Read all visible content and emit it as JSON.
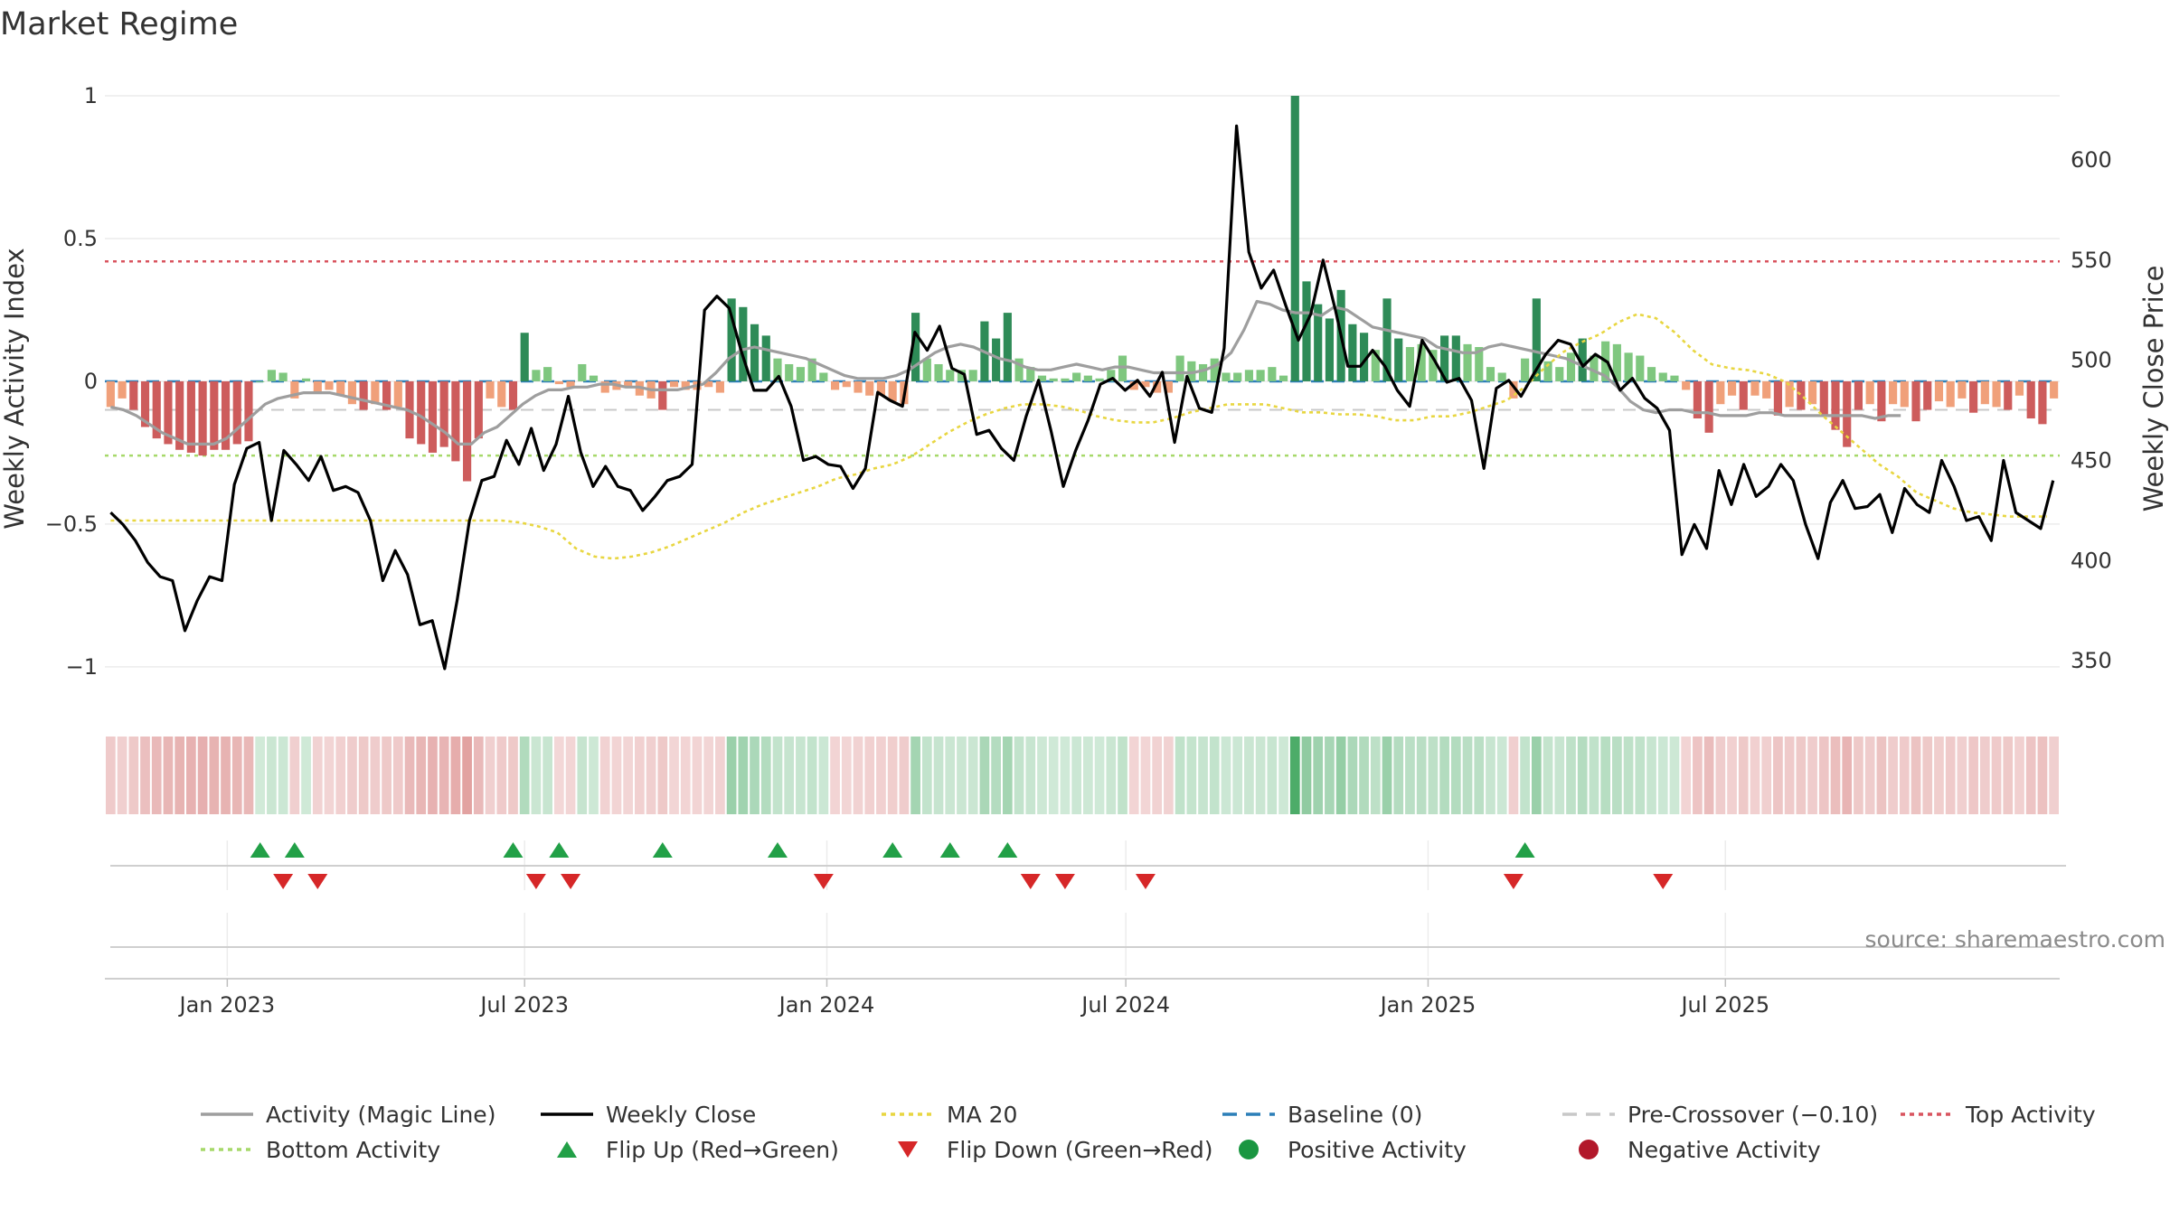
{
  "chart_data": {
    "type": "bar",
    "title": "Market Regime",
    "ylabel": "Weekly Activity Index",
    "y2label": "Weekly Close Price",
    "source": "source: sharemaestro.com",
    "ylim": [
      -1.07,
      1.0
    ],
    "y2lim": [
      337,
      632
    ],
    "y_ticks": [
      {
        "value": 1,
        "label": "1"
      },
      {
        "value": 0.5,
        "label": "0.5"
      },
      {
        "value": 0,
        "label": "0"
      },
      {
        "value": -0.5,
        "label": "−0.5"
      },
      {
        "value": -1,
        "label": "−1"
      }
    ],
    "y2_ticks": [
      {
        "value": 600,
        "label": "600"
      },
      {
        "value": 550,
        "label": "550"
      },
      {
        "value": 500,
        "label": "500"
      },
      {
        "value": 450,
        "label": "450"
      },
      {
        "value": 400,
        "label": "400"
      },
      {
        "value": 350,
        "label": "350"
      }
    ],
    "x_ticks": [
      {
        "date": "2023-01-01",
        "label": "Jan 2023"
      },
      {
        "date": "2023-07-01",
        "label": "Jul 2023"
      },
      {
        "date": "2024-01-01",
        "label": "Jan 2024"
      },
      {
        "date": "2024-07-01",
        "label": "Jul 2024"
      },
      {
        "date": "2025-01-01",
        "label": "Jan 2025"
      },
      {
        "date": "2025-07-01",
        "label": "Jul 2025"
      }
    ],
    "first_week": "2022-10-22",
    "activity": [
      -0.09,
      -0.06,
      -0.1,
      -0.16,
      -0.2,
      -0.22,
      -0.24,
      -0.25,
      -0.26,
      -0.24,
      -0.24,
      -0.22,
      -0.21,
      0.0,
      0.04,
      0.03,
      -0.06,
      0.01,
      -0.04,
      -0.03,
      -0.05,
      -0.08,
      -0.1,
      -0.08,
      -0.1,
      -0.09,
      -0.2,
      -0.22,
      -0.25,
      -0.23,
      -0.28,
      -0.35,
      -0.2,
      -0.06,
      -0.09,
      -0.1,
      0.17,
      0.04,
      0.05,
      -0.01,
      -0.02,
      0.06,
      0.02,
      -0.04,
      -0.03,
      -0.02,
      -0.05,
      -0.06,
      -0.1,
      -0.02,
      -0.03,
      -0.03,
      -0.02,
      -0.04,
      0.29,
      0.26,
      0.2,
      0.16,
      0.08,
      0.06,
      0.05,
      0.08,
      0.03,
      -0.03,
      -0.02,
      -0.04,
      -0.05,
      -0.05,
      -0.07,
      -0.08,
      0.24,
      0.08,
      0.06,
      0.04,
      0.04,
      0.04,
      0.21,
      0.15,
      0.24,
      0.08,
      0.05,
      0.02,
      0.01,
      0.01,
      0.03,
      0.02,
      0.01,
      0.04,
      0.09,
      -0.03,
      -0.02,
      -0.04,
      -0.04,
      0.09,
      0.07,
      0.06,
      0.08,
      0.03,
      0.03,
      0.04,
      0.04,
      0.05,
      0.02,
      1.0,
      0.35,
      0.27,
      0.22,
      0.32,
      0.2,
      0.17,
      0.11,
      0.29,
      0.15,
      0.12,
      0.13,
      0.11,
      0.16,
      0.16,
      0.13,
      0.12,
      0.05,
      0.03,
      -0.06,
      0.08,
      0.29,
      0.07,
      0.05,
      0.1,
      0.15,
      0.09,
      0.14,
      0.13,
      0.1,
      0.09,
      0.05,
      0.03,
      0.02,
      -0.03,
      -0.13,
      -0.18,
      -0.08,
      -0.05,
      -0.1,
      -0.05,
      -0.06,
      -0.12,
      -0.09,
      -0.1,
      -0.08,
      -0.12,
      -0.17,
      -0.23,
      -0.1,
      -0.08,
      -0.14,
      -0.08,
      -0.09,
      -0.14,
      -0.1,
      -0.07,
      -0.09,
      -0.06,
      -0.11,
      -0.08,
      -0.09,
      -0.1,
      -0.05,
      -0.13,
      -0.15,
      -0.06
    ],
    "close": [
      424,
      418,
      410,
      399,
      392,
      390,
      365,
      380,
      392,
      390,
      438,
      456,
      459,
      420,
      455,
      448,
      440,
      452,
      435,
      437,
      434,
      420,
      390,
      405,
      393,
      368,
      370,
      346,
      380,
      420,
      440,
      442,
      460,
      448,
      466,
      445,
      458,
      482,
      454,
      437,
      447,
      437,
      435,
      425,
      432,
      440,
      442,
      448,
      525,
      532,
      526,
      504,
      485,
      485,
      492,
      477,
      450,
      452,
      448,
      447,
      436,
      446,
      484,
      480,
      477,
      514,
      505,
      517,
      496,
      493,
      463,
      465,
      456,
      450,
      472,
      490,
      465,
      437,
      455,
      470,
      488,
      491,
      485,
      490,
      482,
      494,
      459,
      492,
      476,
      474,
      506,
      617,
      554,
      536,
      545,
      527,
      510,
      523,
      550,
      525,
      497,
      497,
      505,
      497,
      485,
      477,
      510,
      500,
      489,
      491,
      480,
      446,
      486,
      490,
      482,
      493,
      503,
      510,
      508,
      497,
      503,
      499,
      485,
      491,
      481,
      476,
      465,
      403,
      418,
      406,
      445,
      428,
      448,
      432,
      437,
      448,
      440,
      418,
      401,
      429,
      440,
      426,
      427,
      433,
      414,
      436,
      428,
      424,
      450,
      437,
      420,
      422,
      410,
      450,
      424,
      420,
      416,
      440
    ],
    "ma20": [
      420,
      420,
      420,
      420,
      420,
      420,
      420,
      420,
      420,
      420,
      420,
      420,
      420,
      420,
      420,
      420,
      420,
      420,
      420,
      420,
      420,
      420,
      419,
      417,
      414,
      406,
      402,
      401,
      402,
      404,
      407,
      411,
      415,
      419,
      424,
      428,
      431,
      434,
      437,
      441,
      443,
      446,
      448,
      452,
      458,
      464,
      469,
      473,
      476,
      478,
      478,
      477,
      475,
      472,
      470,
      469,
      469,
      471,
      474,
      476,
      478,
      478,
      478,
      476,
      474,
      474,
      473,
      473,
      472,
      470,
      470,
      472,
      472,
      474,
      477,
      480,
      487,
      496,
      504,
      509,
      513,
      519,
      523,
      521,
      514,
      505,
      498,
      496,
      495,
      493,
      489,
      481,
      472,
      464,
      456,
      448,
      442,
      434,
      430,
      426,
      424,
      423,
      422,
      422,
      422
    ],
    "ma20_start": 0,
    "magic": [
      -0.09,
      -0.1,
      -0.12,
      -0.15,
      -0.18,
      -0.2,
      -0.22,
      -0.22,
      -0.22,
      -0.2,
      -0.16,
      -0.12,
      -0.08,
      -0.06,
      -0.05,
      -0.04,
      -0.04,
      -0.04,
      -0.05,
      -0.06,
      -0.07,
      -0.08,
      -0.09,
      -0.1,
      -0.12,
      -0.15,
      -0.18,
      -0.22,
      -0.22,
      -0.18,
      -0.16,
      -0.12,
      -0.08,
      -0.05,
      -0.03,
      -0.03,
      -0.02,
      -0.02,
      -0.01,
      -0.01,
      -0.02,
      -0.02,
      -0.03,
      -0.03,
      -0.03,
      -0.02,
      -0.01,
      0.03,
      0.08,
      0.11,
      0.12,
      0.11,
      0.1,
      0.09,
      0.08,
      0.06,
      0.04,
      0.02,
      0.01,
      0.01,
      0.01,
      0.02,
      0.04,
      0.07,
      0.1,
      0.12,
      0.13,
      0.12,
      0.1,
      0.08,
      0.07,
      0.05,
      0.04,
      0.04,
      0.05,
      0.06,
      0.05,
      0.04,
      0.05,
      0.05,
      0.04,
      0.03,
      0.03,
      0.03,
      0.03,
      0.04,
      0.06,
      0.1,
      0.18,
      0.28,
      0.27,
      0.25,
      0.24,
      0.24,
      0.23,
      0.26,
      0.25,
      0.22,
      0.19,
      0.18,
      0.17,
      0.16,
      0.15,
      0.12,
      0.11,
      0.1,
      0.1,
      0.12,
      0.13,
      0.12,
      0.11,
      0.1,
      0.09,
      0.08,
      0.06,
      0.04,
      0.02,
      -0.02,
      -0.07,
      -0.1,
      -0.11,
      -0.1,
      -0.1,
      -0.11,
      -0.11,
      -0.12,
      -0.12,
      -0.12,
      -0.11,
      -0.11,
      -0.12,
      -0.12,
      -0.12,
      -0.12,
      -0.12,
      -0.12,
      -0.12,
      -0.13,
      -0.12,
      -0.12
    ],
    "magic_start": 0,
    "magic_step": 1.12,
    "top_activity": 0.42,
    "bottom_activity": -0.26,
    "baseline": 0,
    "pre_crossover": -0.1,
    "flips_up": [
      13,
      16,
      35,
      39,
      48,
      58,
      68,
      73,
      78,
      123
    ],
    "flips_down": [
      15,
      18,
      37,
      40,
      62,
      80,
      83,
      90,
      122,
      135
    ],
    "legend": [
      {
        "label": "Activity (Magic Line)",
        "style": "solid",
        "color": "#9e9e9e"
      },
      {
        "label": "Weekly Close",
        "style": "solid",
        "color": "#000000"
      },
      {
        "label": "MA 20",
        "style": "dotted",
        "color": "#e8d641"
      },
      {
        "label": "Baseline (0)",
        "style": "dashed",
        "color": "#2c7fb8"
      },
      {
        "label": "Pre-Crossover (−0.10)",
        "style": "dashed",
        "color": "#c8c8c8"
      },
      {
        "label": "Top Activity",
        "style": "dotted",
        "color": "#d9545f"
      },
      {
        "label": "Bottom Activity",
        "style": "dotted",
        "color": "#a6d96a"
      },
      {
        "label": "Flip Up (Red→Green)",
        "style": "triangle-up",
        "color": "#22a047"
      },
      {
        "label": "Flip Down (Green→Red)",
        "style": "triangle-down",
        "color": "#d62728"
      },
      {
        "label": "Positive Activity",
        "style": "circle",
        "color": "#1a9641"
      },
      {
        "label": "Negative Activity",
        "style": "circle",
        "color": "#b2182b"
      }
    ],
    "colors": {
      "pos_strong": "#2e8b57",
      "pos_light": "#7fc77f",
      "neg_strong": "#cd5c5c",
      "neg_light": "#f0a07a",
      "band_pos": "#2e9e4f",
      "band_neg": "#c9504f"
    }
  }
}
